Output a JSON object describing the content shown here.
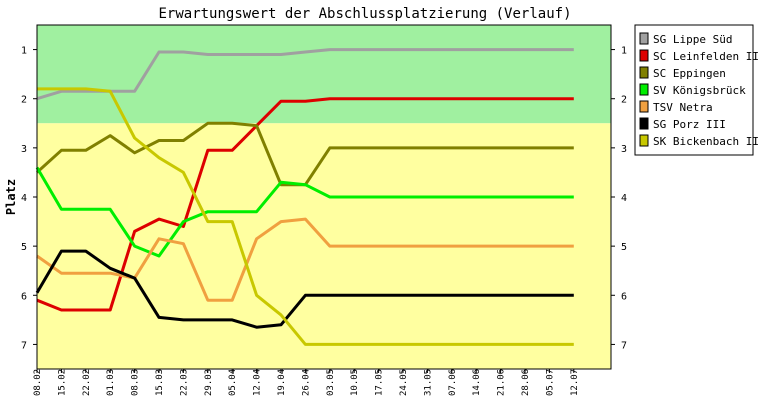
{
  "chart_data": {
    "type": "line",
    "title": "Erwartungswert der Abschlussplatzierung (Verlauf)",
    "ylabel": "Platz",
    "xlabel": "",
    "ylim": [
      0.5,
      7.5
    ],
    "y_inverted": true,
    "y_ticks": [
      "1",
      "2",
      "3",
      "4",
      "5",
      "6",
      "7"
    ],
    "grid": false,
    "legend_position": "right",
    "bands": [
      {
        "from": 0.5,
        "to": 2.5,
        "color": "#a0f0a0"
      },
      {
        "from": 2.5,
        "to": 7.5,
        "color": "#ffffa0"
      }
    ],
    "categories": [
      "08.02",
      "15.02",
      "22.02",
      "01.03",
      "08.03",
      "15.03",
      "22.03",
      "29.03",
      "05.04",
      "12.04",
      "19.04",
      "26.04",
      "03.05",
      "10.05",
      "17.05",
      "24.05",
      "31.05",
      "07.06",
      "14.06",
      "21.06",
      "28.06",
      "05.07",
      "12.07"
    ],
    "series": [
      {
        "name": "SG Lippe Süd",
        "color": "#a0a0a0",
        "values": [
          2.0,
          1.85,
          1.85,
          1.85,
          1.85,
          1.05,
          1.05,
          1.1,
          1.1,
          1.1,
          1.1,
          1.05,
          1.0,
          1.0,
          1.0,
          1.0,
          1.0,
          1.0,
          1.0,
          1.0,
          1.0,
          1.0,
          1.0
        ]
      },
      {
        "name": "SC Leinfelden II",
        "color": "#dd0000",
        "values": [
          6.1,
          6.3,
          6.3,
          6.3,
          4.7,
          4.45,
          4.6,
          3.05,
          3.05,
          2.55,
          2.05,
          2.05,
          2.0,
          2.0,
          2.0,
          2.0,
          2.0,
          2.0,
          2.0,
          2.0,
          2.0,
          2.0,
          2.0
        ]
      },
      {
        "name": "SC Eppingen",
        "color": "#808000",
        "values": [
          3.5,
          3.05,
          3.05,
          2.75,
          3.1,
          2.85,
          2.85,
          2.5,
          2.5,
          2.55,
          3.75,
          3.75,
          3.0,
          3.0,
          3.0,
          3.0,
          3.0,
          3.0,
          3.0,
          3.0,
          3.0,
          3.0,
          3.0
        ]
      },
      {
        "name": "SV Königsbrück",
        "color": "#00ee00",
        "values": [
          3.4,
          4.25,
          4.25,
          4.25,
          5.0,
          5.2,
          4.5,
          4.3,
          4.3,
          4.3,
          3.7,
          3.75,
          4.0,
          4.0,
          4.0,
          4.0,
          4.0,
          4.0,
          4.0,
          4.0,
          4.0,
          4.0,
          4.0
        ]
      },
      {
        "name": "TSV Netra",
        "color": "#f0a040",
        "values": [
          5.2,
          5.55,
          5.55,
          5.55,
          5.65,
          4.85,
          4.95,
          6.1,
          6.1,
          4.85,
          4.5,
          4.45,
          5.0,
          5.0,
          5.0,
          5.0,
          5.0,
          5.0,
          5.0,
          5.0,
          5.0,
          5.0,
          5.0
        ]
      },
      {
        "name": "SG Porz III",
        "color": "#000000",
        "values": [
          5.95,
          5.1,
          5.1,
          5.45,
          5.65,
          6.45,
          6.5,
          6.5,
          6.5,
          6.65,
          6.6,
          6.0,
          6.0,
          6.0,
          6.0,
          6.0,
          6.0,
          6.0,
          6.0,
          6.0,
          6.0,
          6.0,
          6.0
        ]
      },
      {
        "name": "SK Bickenbach II",
        "color": "#c8c800",
        "values": [
          1.8,
          1.8,
          1.8,
          1.85,
          2.8,
          3.2,
          3.5,
          4.5,
          4.5,
          6.0,
          6.4,
          7.0,
          7.0,
          7.0,
          7.0,
          7.0,
          7.0,
          7.0,
          7.0,
          7.0,
          7.0,
          7.0,
          7.0
        ]
      }
    ]
  }
}
